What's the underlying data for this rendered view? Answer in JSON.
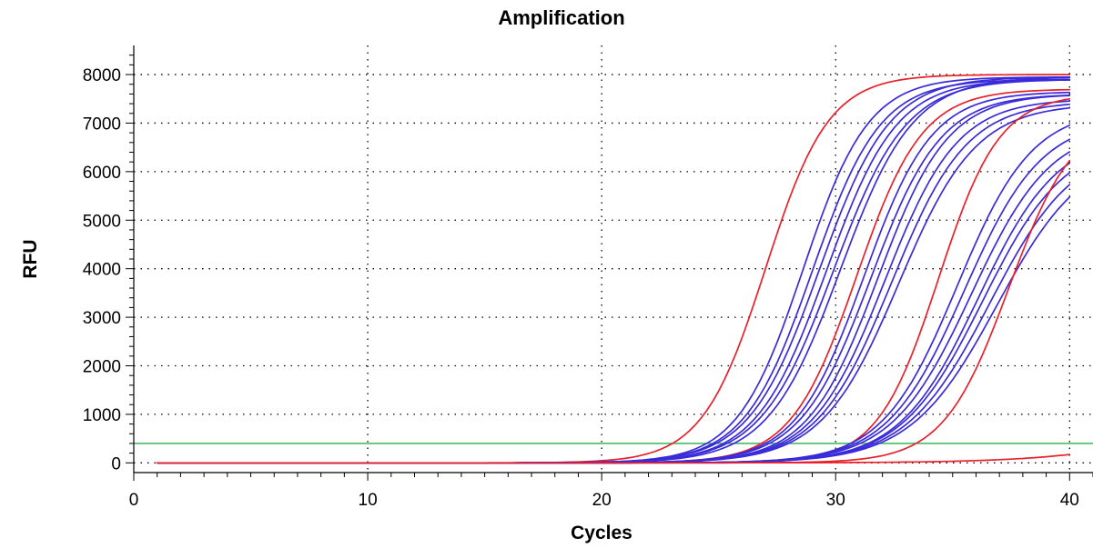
{
  "chart_data": {
    "type": "line",
    "title": "Amplification",
    "xlabel": "Cycles",
    "ylabel": "RFU",
    "xlim": [
      0,
      41
    ],
    "ylim": [
      -200,
      8600
    ],
    "x_ticks": [
      0,
      10,
      20,
      30,
      40
    ],
    "y_ticks": [
      0,
      1000,
      2000,
      3000,
      4000,
      5000,
      6000,
      7000,
      8000
    ],
    "grid": true,
    "cycles": [
      1,
      40
    ],
    "threshold": {
      "value": 400,
      "color": "#22b14c"
    },
    "series_model": "sigmoid: RFU = plateau / (1 + exp(-(cycle - midpoint) / slope))",
    "series": [
      {
        "color": "#e8212b",
        "plateau": 8000,
        "midpoint": 27.0,
        "slope": 1.35
      },
      {
        "color": "#3a2bd9",
        "plateau": 7950,
        "midpoint": 28.6,
        "slope": 1.4
      },
      {
        "color": "#3a2bd9",
        "plateau": 7900,
        "midpoint": 29.0,
        "slope": 1.45
      },
      {
        "color": "#3a2bd9",
        "plateau": 7950,
        "midpoint": 29.3,
        "slope": 1.5
      },
      {
        "color": "#3a2bd9",
        "plateau": 7900,
        "midpoint": 29.6,
        "slope": 1.5
      },
      {
        "color": "#3a2bd9",
        "plateau": 7900,
        "midpoint": 29.9,
        "slope": 1.55
      },
      {
        "color": "#3a2bd9",
        "plateau": 7950,
        "midpoint": 30.2,
        "slope": 1.55
      },
      {
        "color": "#e8212b",
        "plateau": 7700,
        "midpoint": 30.9,
        "slope": 1.4
      },
      {
        "color": "#3a2bd9",
        "plateau": 7650,
        "midpoint": 31.2,
        "slope": 1.45
      },
      {
        "color": "#3a2bd9",
        "plateau": 7600,
        "midpoint": 31.5,
        "slope": 1.5
      },
      {
        "color": "#3a2bd9",
        "plateau": 7600,
        "midpoint": 31.8,
        "slope": 1.5
      },
      {
        "color": "#3a2bd9",
        "plateau": 7500,
        "midpoint": 32.1,
        "slope": 1.55
      },
      {
        "color": "#3a2bd9",
        "plateau": 7450,
        "midpoint": 32.4,
        "slope": 1.6
      },
      {
        "color": "#3a2bd9",
        "plateau": 7400,
        "midpoint": 32.7,
        "slope": 1.65
      },
      {
        "color": "#e8212b",
        "plateau": 7600,
        "midpoint": 34.4,
        "slope": 1.3
      },
      {
        "color": "#3a2bd9",
        "plateau": 7300,
        "midpoint": 35.2,
        "slope": 1.6
      },
      {
        "color": "#3a2bd9",
        "plateau": 7100,
        "midpoint": 35.5,
        "slope": 1.65
      },
      {
        "color": "#3a2bd9",
        "plateau": 6950,
        "midpoint": 35.8,
        "slope": 1.7
      },
      {
        "color": "#3a2bd9",
        "plateau": 6800,
        "midpoint": 36.1,
        "slope": 1.7
      },
      {
        "color": "#3a2bd9",
        "plateau": 6700,
        "midpoint": 36.3,
        "slope": 1.75
      },
      {
        "color": "#3a2bd9",
        "plateau": 6600,
        "midpoint": 36.6,
        "slope": 1.8
      },
      {
        "color": "#3a2bd9",
        "plateau": 6500,
        "midpoint": 36.9,
        "slope": 1.85
      },
      {
        "color": "#e8212b",
        "plateau": 7200,
        "midpoint": 37.4,
        "slope": 1.4
      },
      {
        "color": "#e8212b",
        "plateau": 1200,
        "midpoint": 45.0,
        "slope": 2.8
      }
    ]
  }
}
